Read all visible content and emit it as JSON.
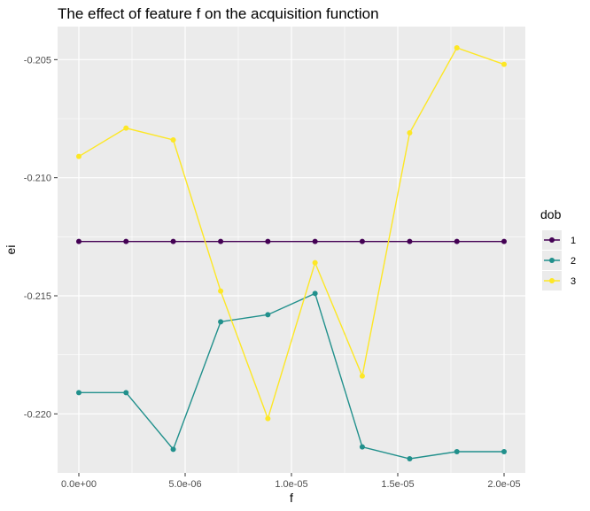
{
  "chart_data": {
    "type": "line",
    "title": "The effect of feature f on the acquisition function",
    "xlabel": "f",
    "ylabel": "ei",
    "x": [
      0,
      2.22e-06,
      4.44e-06,
      6.67e-06,
      8.89e-06,
      1.111e-05,
      1.333e-05,
      1.556e-05,
      1.778e-05,
      2e-05
    ],
    "xlim": [
      -1e-06,
      2.1e-05
    ],
    "ylim": [
      -0.2225,
      -0.2036
    ],
    "x_ticks": [
      {
        "value": 0,
        "label": "0.0e+00"
      },
      {
        "value": 5e-06,
        "label": "5.0e-06"
      },
      {
        "value": 1e-05,
        "label": "1.0e-05"
      },
      {
        "value": 1.5e-05,
        "label": "1.5e-05"
      },
      {
        "value": 2e-05,
        "label": "2.0e-05"
      }
    ],
    "y_ticks": [
      {
        "value": -0.205,
        "label": "-0.205"
      },
      {
        "value": -0.21,
        "label": "-0.210"
      },
      {
        "value": -0.215,
        "label": "-0.215"
      },
      {
        "value": -0.22,
        "label": "-0.220"
      }
    ],
    "grid": true,
    "legend": {
      "title": "dob",
      "position": "right"
    },
    "series": [
      {
        "name": "1",
        "color": "#440154",
        "values": [
          -0.2127,
          -0.2127,
          -0.2127,
          -0.2127,
          -0.2127,
          -0.2127,
          -0.2127,
          -0.2127,
          -0.2127,
          -0.2127
        ]
      },
      {
        "name": "2",
        "color": "#21908C",
        "values": [
          -0.2191,
          -0.2191,
          -0.2215,
          -0.2161,
          -0.2158,
          -0.2149,
          -0.2214,
          -0.2219,
          -0.2216,
          -0.2216
        ]
      },
      {
        "name": "3",
        "color": "#FDE725",
        "values": [
          -0.2091,
          -0.2079,
          -0.2084,
          -0.2148,
          -0.2202,
          -0.2136,
          -0.2184,
          -0.2081,
          -0.2045,
          -0.2052
        ]
      }
    ]
  }
}
